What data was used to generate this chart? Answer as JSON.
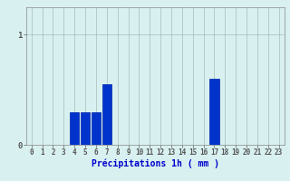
{
  "categories": [
    0,
    1,
    2,
    3,
    4,
    5,
    6,
    7,
    8,
    9,
    10,
    11,
    12,
    13,
    14,
    15,
    16,
    17,
    18,
    19,
    20,
    21,
    22,
    23
  ],
  "values": [
    0,
    0,
    0,
    0,
    0.3,
    0.3,
    0.3,
    0.55,
    0,
    0,
    0,
    0,
    0,
    0,
    0,
    0,
    0,
    0.6,
    0,
    0,
    0,
    0,
    0,
    0
  ],
  "bar_color": "#0033cc",
  "bar_edge_color": "#0022aa",
  "background_color": "#d8f0f0",
  "grid_color": "#aabbbb",
  "xlabel": "Précipitations 1h ( mm )",
  "xlabel_color": "#0000cc",
  "tick_label_color": "#0000cc",
  "ytick_labels": [
    "0",
    "1"
  ],
  "ytick_vals": [
    0,
    1
  ],
  "ylim": [
    0,
    1.25
  ],
  "xlim": [
    -0.5,
    23.5
  ],
  "tick_fontsize": 5.5,
  "xlabel_fontsize": 7.0
}
